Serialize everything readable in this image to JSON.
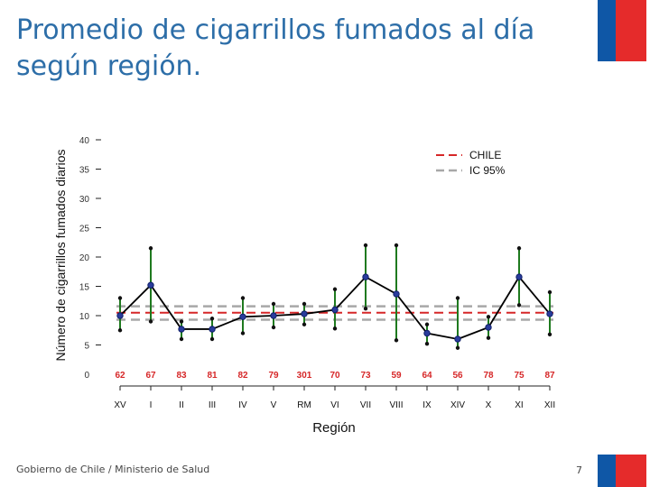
{
  "slide": {
    "title": "Promedio de cigarrillos fumados al día según región.",
    "footer": "Gobierno de Chile / Ministerio de Salud",
    "page_number": "7"
  },
  "colors": {
    "title": "#2d6ea8",
    "flag_blue": "#0f57a6",
    "flag_red": "#e52b2b",
    "chile_line": "#d62728",
    "ic_line": "#a8a8a8",
    "ci_bar": "#1f7a1f",
    "mean_line": "#000000",
    "point_fill": "#2a3c9c",
    "count_text": "#d62728"
  },
  "chart_data": {
    "type": "line",
    "title": "",
    "xlabel": "Región",
    "ylabel": "Número de cigarrillos fumados diarios",
    "ylim": [
      0,
      40
    ],
    "y_ticks": [
      0,
      5,
      10,
      15,
      20,
      25,
      30,
      35,
      40
    ],
    "y_tick_labels": [
      "0",
      "5",
      "10",
      "15",
      "20",
      "25",
      "30",
      "35",
      "40"
    ],
    "categories": [
      "XV",
      "I",
      "II",
      "III",
      "IV",
      "V",
      "RM",
      "VI",
      "VII",
      "VIII",
      "IX",
      "XIV",
      "X",
      "XI",
      "XII"
    ],
    "sample_sizes": [
      "62",
      "67",
      "83",
      "81",
      "82",
      "79",
      "301",
      "70",
      "73",
      "59",
      "64",
      "56",
      "78",
      "75",
      "87"
    ],
    "series": [
      {
        "name": "Promedio",
        "values": [
          10,
          15.2,
          7.7,
          7.7,
          9.8,
          10,
          10.3,
          11,
          16.6,
          13.7,
          7,
          6,
          8,
          16.6,
          10.3
        ],
        "ci_low": [
          7.5,
          9,
          6,
          6,
          7,
          8,
          8.5,
          7.8,
          11.2,
          5.8,
          5.2,
          4.5,
          6.2,
          11.8,
          6.8
        ],
        "ci_high": [
          13,
          21.5,
          9,
          9.5,
          13,
          12,
          12,
          14.5,
          22,
          22,
          8.5,
          13,
          9.8,
          21.5,
          14
        ]
      }
    ],
    "reference_lines": [
      {
        "name": "CHILE",
        "value": 10.5,
        "style": "dashed"
      },
      {
        "name": "IC 95%",
        "low": 9.3,
        "high": 11.6,
        "style": "dashed"
      }
    ],
    "legend": [
      {
        "label": "CHILE"
      },
      {
        "label": "IC 95%"
      }
    ],
    "legend_position": "top-right"
  }
}
